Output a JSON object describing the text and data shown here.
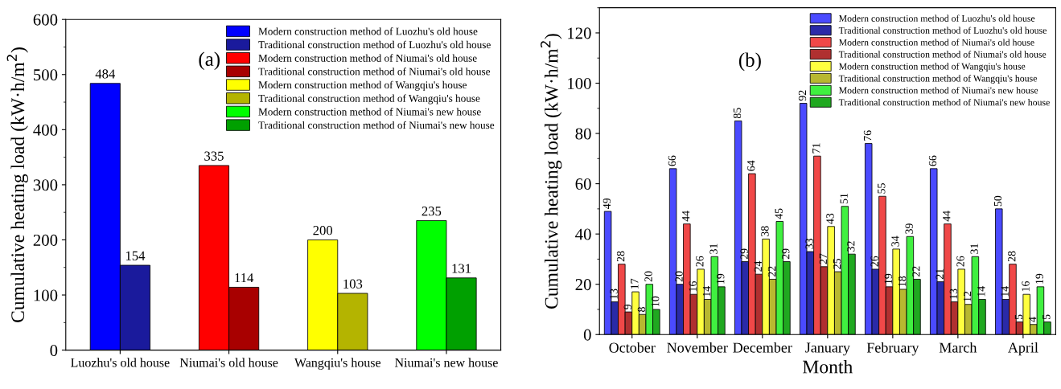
{
  "chart_data": [
    {
      "type": "bar",
      "title": "(a)",
      "ylabel": "Cumulative heating load (kW·h/m$^{2}$)",
      "categories": [
        "Luozhu's old house",
        "Niumai's old house",
        "Wangqiu's house",
        "Niumai's new house"
      ],
      "ylim": [
        0,
        600
      ],
      "yticks": [
        0,
        100,
        200,
        300,
        400,
        500,
        600
      ],
      "data_labels": true,
      "legend": "top right",
      "grid": false,
      "series": [
        {
          "name": "Modern construction method of Luozhu's old house",
          "color": "#0000ff",
          "values": [
            484,
            null,
            null,
            null
          ]
        },
        {
          "name": "Traditional construction method of Luozhu's old house",
          "color": "#1a1a9c",
          "values": [
            154,
            null,
            null,
            null
          ]
        },
        {
          "name": "Modern construction method of Niumai's old house",
          "color": "#ff0000",
          "values": [
            null,
            335,
            null,
            null
          ]
        },
        {
          "name": "Traditional construction method of Niumai's old house",
          "color": "#a80000",
          "values": [
            null,
            114,
            null,
            null
          ]
        },
        {
          "name": "Modern construction method of Wangqiu's house",
          "color": "#ffff00",
          "values": [
            null,
            null,
            200,
            null
          ]
        },
        {
          "name": "Traditional construction method of Wangqiu's house",
          "color": "#b4b400",
          "values": [
            null,
            null,
            103,
            null
          ]
        },
        {
          "name": "Modern construction method of Niumai's new house",
          "color": "#00ff00",
          "values": [
            null,
            null,
            null,
            235
          ]
        },
        {
          "name": "Traditional construction method of Niumai's new house",
          "color": "#00a000",
          "values": [
            null,
            null,
            null,
            131
          ]
        }
      ]
    },
    {
      "type": "bar",
      "title": "(b)",
      "xlabel": "Month",
      "ylabel": "Cumulative heating load (kW·h/m$^{2}$)",
      "categories": [
        "October",
        "November",
        "December",
        "January",
        "February",
        "March",
        "April"
      ],
      "ylim": [
        0,
        130
      ],
      "yticks": [
        0,
        20,
        40,
        60,
        80,
        100,
        120
      ],
      "data_labels": true,
      "legend": "top right",
      "grid": false,
      "series": [
        {
          "name": "Modern construction method of Luozhu's old house",
          "color": "#4a4aff",
          "values": [
            49,
            66,
            85,
            92,
            76,
            66,
            50
          ]
        },
        {
          "name": "Traditional construction method of Luozhu's old house",
          "color": "#2a2aa8",
          "values": [
            13,
            20,
            29,
            33,
            26,
            21,
            14
          ]
        },
        {
          "name": "Modern construction method of Niumai's old house",
          "color": "#f04848",
          "values": [
            28,
            44,
            64,
            71,
            55,
            44,
            28
          ]
        },
        {
          "name": "Traditional construction method of Niumai's old house",
          "color": "#b03030",
          "values": [
            9,
            16,
            24,
            27,
            19,
            13,
            5
          ]
        },
        {
          "name": "Modern construction method of Wangqiu's house",
          "color": "#ffff40",
          "values": [
            17,
            26,
            38,
            43,
            34,
            26,
            16
          ]
        },
        {
          "name": "Traditional construction method of Wangqiu's house",
          "color": "#b8b830",
          "values": [
            8,
            14,
            22,
            25,
            18,
            12,
            4
          ]
        },
        {
          "name": "Modern construction method of Niumai's new house",
          "color": "#40f040",
          "values": [
            20,
            31,
            45,
            51,
            39,
            31,
            19
          ]
        },
        {
          "name": "Traditional construction method of Niumai's new house",
          "color": "#20a820",
          "values": [
            10,
            19,
            29,
            32,
            22,
            14,
            5
          ]
        }
      ]
    }
  ]
}
